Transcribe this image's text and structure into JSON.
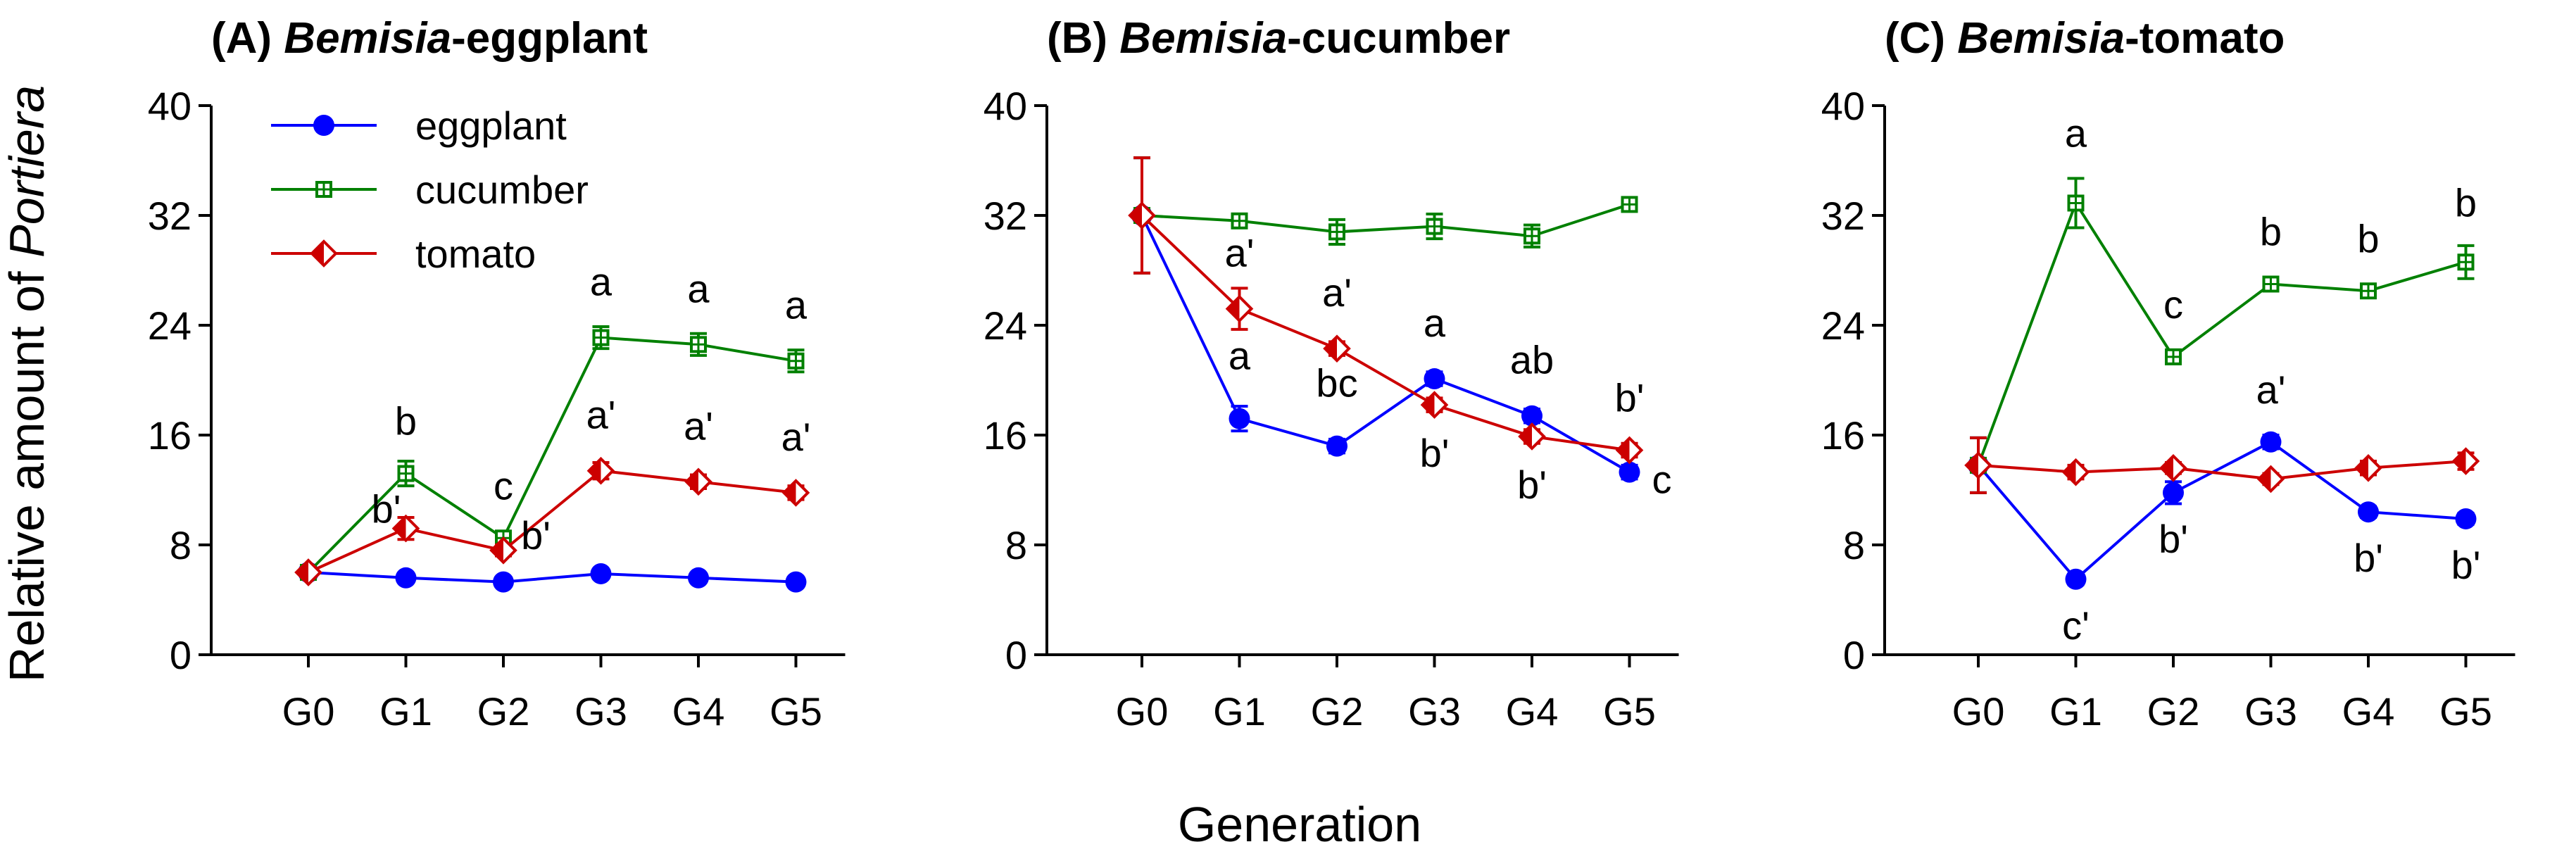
{
  "figure": {
    "ylabel_prefix": "Relative amount of ",
    "ylabel_italic": "Portiera",
    "xlabel": "Generation"
  },
  "chart_data": [
    {
      "type": "line",
      "panel_label": "(A) ",
      "title_italic": "Bemisia",
      "title_suffix": "-eggplant",
      "categories": [
        "G0",
        "G1",
        "G2",
        "G3",
        "G4",
        "G5"
      ],
      "ylim": [
        0,
        40
      ],
      "yticks": [
        0,
        8,
        16,
        24,
        32,
        40
      ],
      "legend": true,
      "series": [
        {
          "name": "eggplant",
          "color": "#0000ff",
          "marker": "circle",
          "values": [
            6.0,
            5.6,
            5.3,
            5.9,
            5.6,
            5.3
          ],
          "errors": [
            0.3,
            0.3,
            0.3,
            0.3,
            0.3,
            0.3
          ],
          "labels": [
            "",
            "",
            "",
            "",
            "",
            ""
          ]
        },
        {
          "name": "cucumber",
          "color": "#008000",
          "marker": "square-open",
          "values": [
            6.0,
            13.2,
            8.5,
            23.1,
            22.6,
            21.4
          ],
          "errors": [
            0.3,
            0.9,
            0.5,
            0.8,
            0.8,
            0.8
          ],
          "labels": [
            "",
            "b",
            "c",
            "a",
            "a",
            "a"
          ]
        },
        {
          "name": "tomato",
          "color": "#cc0000",
          "marker": "diamond",
          "values": [
            6.0,
            9.2,
            7.6,
            13.4,
            12.6,
            11.8
          ],
          "errors": [
            0.3,
            0.8,
            0.4,
            0.6,
            0.5,
            0.5
          ],
          "labels": [
            "",
            "b'",
            "b'",
            "a'",
            "a'",
            "a'"
          ]
        }
      ]
    },
    {
      "type": "line",
      "panel_label": "(B) ",
      "title_italic": "Bemisia",
      "title_suffix": "-cucumber",
      "categories": [
        "G0",
        "G1",
        "G2",
        "G3",
        "G4",
        "G5"
      ],
      "ylim": [
        0,
        40
      ],
      "yticks": [
        0,
        8,
        16,
        24,
        32,
        40
      ],
      "legend": false,
      "series": [
        {
          "name": "eggplant",
          "color": "#0000ff",
          "marker": "circle",
          "values": [
            32.0,
            17.2,
            15.2,
            20.1,
            17.4,
            13.3
          ],
          "errors": [
            4.2,
            0.9,
            0.5,
            0.5,
            0.5,
            0.5
          ],
          "labels": [
            "",
            "a",
            "bc",
            "a",
            "ab",
            "c"
          ]
        },
        {
          "name": "cucumber",
          "color": "#008000",
          "marker": "square-open",
          "values": [
            32.0,
            31.6,
            30.8,
            31.2,
            30.5,
            32.8
          ],
          "errors": [
            4.2,
            0.5,
            0.9,
            0.9,
            0.8,
            0.4
          ],
          "labels": [
            "",
            "",
            "",
            "",
            "",
            ""
          ]
        },
        {
          "name": "tomato",
          "color": "#cc0000",
          "marker": "diamond",
          "values": [
            32.0,
            25.2,
            22.3,
            18.2,
            15.9,
            14.9
          ],
          "errors": [
            4.2,
            1.5,
            0.5,
            0.5,
            0.5,
            0.5
          ],
          "labels": [
            "",
            "a'",
            "a'",
            "b'",
            "b'",
            "b'"
          ]
        }
      ]
    },
    {
      "type": "line",
      "panel_label": "(C) ",
      "title_italic": "Bemisia",
      "title_suffix": "-tomato",
      "categories": [
        "G0",
        "G1",
        "G2",
        "G3",
        "G4",
        "G5"
      ],
      "ylim": [
        0,
        40
      ],
      "yticks": [
        0,
        8,
        16,
        24,
        32,
        40
      ],
      "legend": false,
      "series": [
        {
          "name": "eggplant",
          "color": "#0000ff",
          "marker": "circle",
          "values": [
            13.8,
            5.5,
            11.8,
            15.5,
            10.4,
            9.9
          ],
          "errors": [
            2.0,
            0.4,
            0.8,
            0.5,
            0.4,
            0.4
          ],
          "labels": [
            "",
            "c'",
            "b'",
            "a'",
            "b'",
            "b'"
          ]
        },
        {
          "name": "cucumber",
          "color": "#008000",
          "marker": "square-open",
          "values": [
            13.8,
            32.9,
            21.7,
            27.0,
            26.5,
            28.6
          ],
          "errors": [
            2.0,
            1.8,
            0.5,
            0.5,
            0.5,
            1.2
          ],
          "labels": [
            "",
            "a",
            "c",
            "b",
            "b",
            "b"
          ]
        },
        {
          "name": "tomato",
          "color": "#cc0000",
          "marker": "diamond",
          "values": [
            13.8,
            13.3,
            13.6,
            12.8,
            13.6,
            14.1
          ],
          "errors": [
            2.0,
            0.5,
            0.4,
            0.4,
            0.5,
            0.6
          ],
          "labels": [
            "",
            "",
            "",
            "",
            "",
            ""
          ]
        }
      ]
    }
  ]
}
